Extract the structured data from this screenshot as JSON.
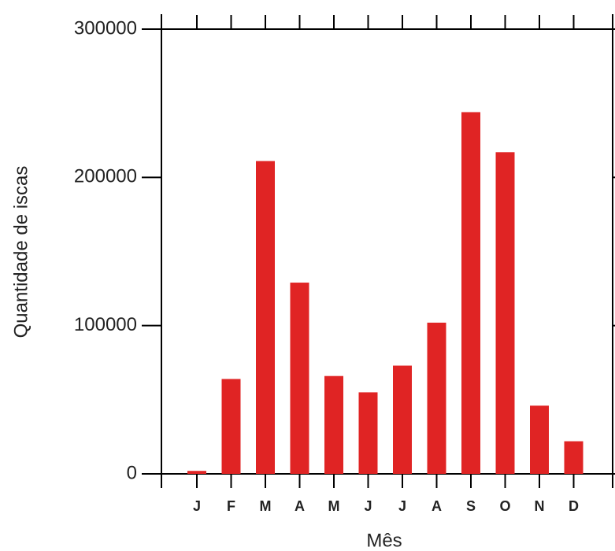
{
  "chart_data": {
    "type": "bar",
    "x_label": "Mês",
    "y_label": "Quantidade de iscas",
    "categories": [
      "J",
      "F",
      "M",
      "A",
      "M",
      "J",
      "J",
      "A",
      "S",
      "O",
      "N",
      "D"
    ],
    "values": [
      2000,
      64000,
      211000,
      129000,
      66000,
      55000,
      73000,
      102000,
      244000,
      217000,
      46000,
      22000
    ],
    "color": "#e02424",
    "ylim": [
      0,
      300000
    ],
    "yticks": [
      0,
      100000,
      200000,
      300000
    ],
    "grid": false
  }
}
